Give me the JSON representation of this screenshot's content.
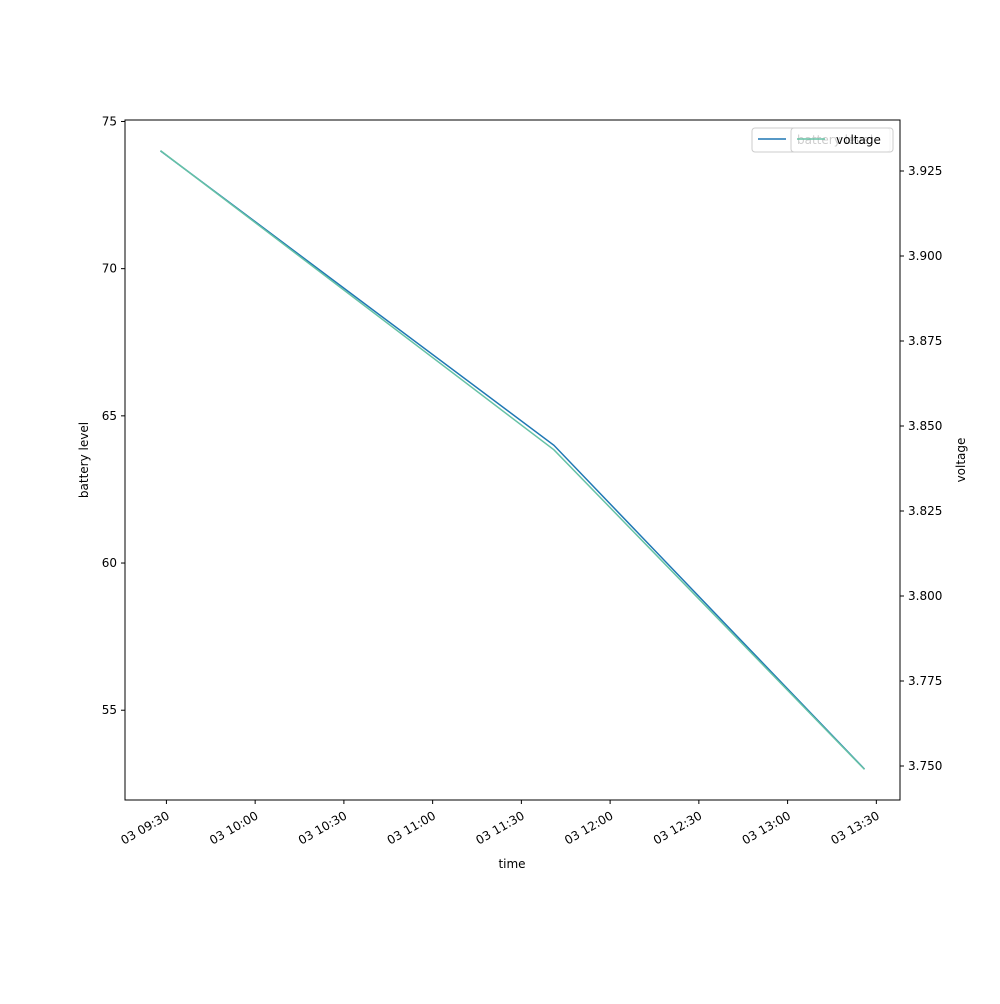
{
  "chart_data": {
    "type": "line",
    "x": [
      "03 09:28",
      "03 11:41",
      "03 13:26"
    ],
    "xlim": [
      "03 09:16",
      "03 13:38"
    ],
    "xticks": [
      "03 09:30",
      "03 10:00",
      "03 10:30",
      "03 11:00",
      "03 11:30",
      "03 12:00",
      "03 12:30",
      "03 13:00",
      "03 13:30"
    ],
    "xlabel": "time",
    "ylabel": "battery level",
    "y2label": "voltage",
    "ylim": [
      51.95,
      75.05
    ],
    "yticks": [
      55,
      60,
      65,
      70,
      75
    ],
    "y2lim": [
      3.74,
      3.94
    ],
    "y2ticks": [
      {
        "value": 3.75,
        "label": "3.750"
      },
      3.775,
      {
        "value": 3.8,
        "label": "3.800"
      },
      3.825,
      {
        "value": 3.85,
        "label": "3.850"
      },
      3.875,
      {
        "value": 3.9,
        "label": "3.900"
      },
      3.925
    ],
    "series": [
      {
        "name": "battery level",
        "color": "#1f77b4",
        "values": [
          74,
          64,
          53
        ]
      },
      {
        "name": "voltage",
        "color": "#66c2a5",
        "axis": "y2",
        "values": [
          3.931,
          3.843,
          3.749
        ]
      }
    ],
    "legend": "upper right"
  }
}
